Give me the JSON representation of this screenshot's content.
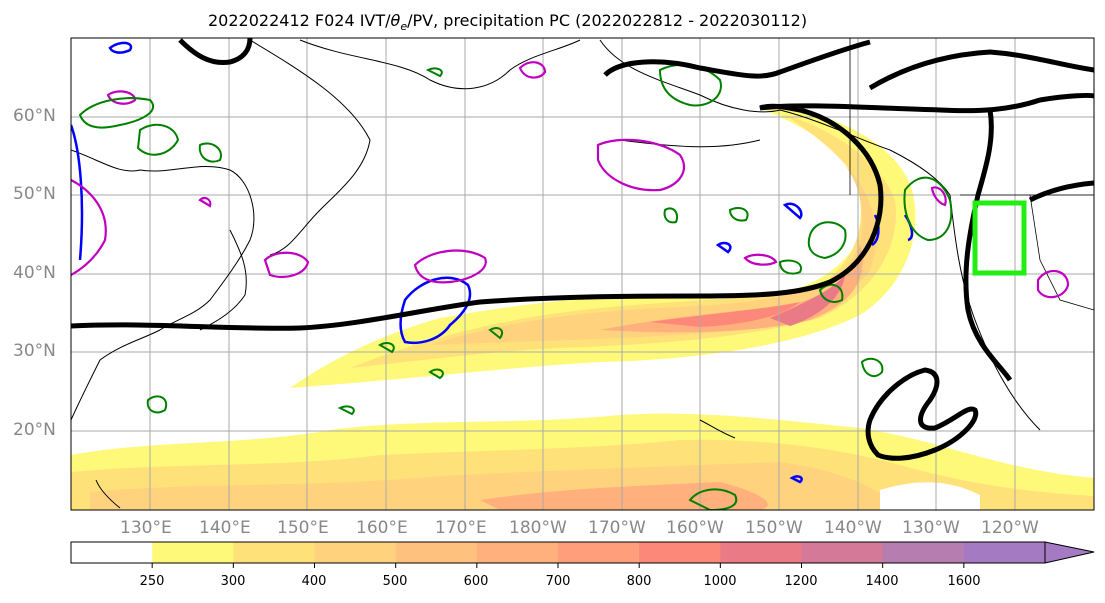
{
  "title": "2022022412 F024 IVT/θe/PV, precipitation PC (2022022812 - 2022030112)",
  "title_parts": {
    "prefix": "2022022412 F024 IVT/",
    "theta": "θ",
    "theta_sub": "e",
    "suffix": "/PV, precipitation PC (2022022812 - 2022030112)"
  },
  "lat_labels": [
    "60°N",
    "50°N",
    "40°N",
    "30°N",
    "20°N"
  ],
  "lon_labels": [
    "130°E",
    "140°E",
    "150°E",
    "160°E",
    "170°E",
    "180°W",
    "170°W",
    "160°W",
    "150°W",
    "140°W",
    "130°W",
    "120°W"
  ],
  "colorbar": {
    "ticks": [
      "250",
      "300",
      "400",
      "500",
      "600",
      "700",
      "800",
      "1000",
      "1200",
      "1400",
      "1600"
    ],
    "colors": [
      "#ffffff",
      "#fff97a",
      "#ffe17a",
      "#ffd27e",
      "#ffc17e",
      "#ffb07c",
      "#ff9e7a",
      "#fb8878",
      "#ea7b86",
      "#d47a98",
      "#b67db0",
      "#a47bc2"
    ],
    "extend": "max"
  },
  "legend_colors": {
    "ivt_fill": "#ffd27e",
    "jet_contour": "#000000",
    "positive_contour": "#008000",
    "pv_contour": "#c000c0",
    "negative_contour": "#0000ff",
    "target_box": "#22ee11"
  },
  "map_features": {
    "coastlines": "black",
    "gridlines": "gray",
    "target_region_box": "bright green rectangle over US Pacific Northwest"
  }
}
